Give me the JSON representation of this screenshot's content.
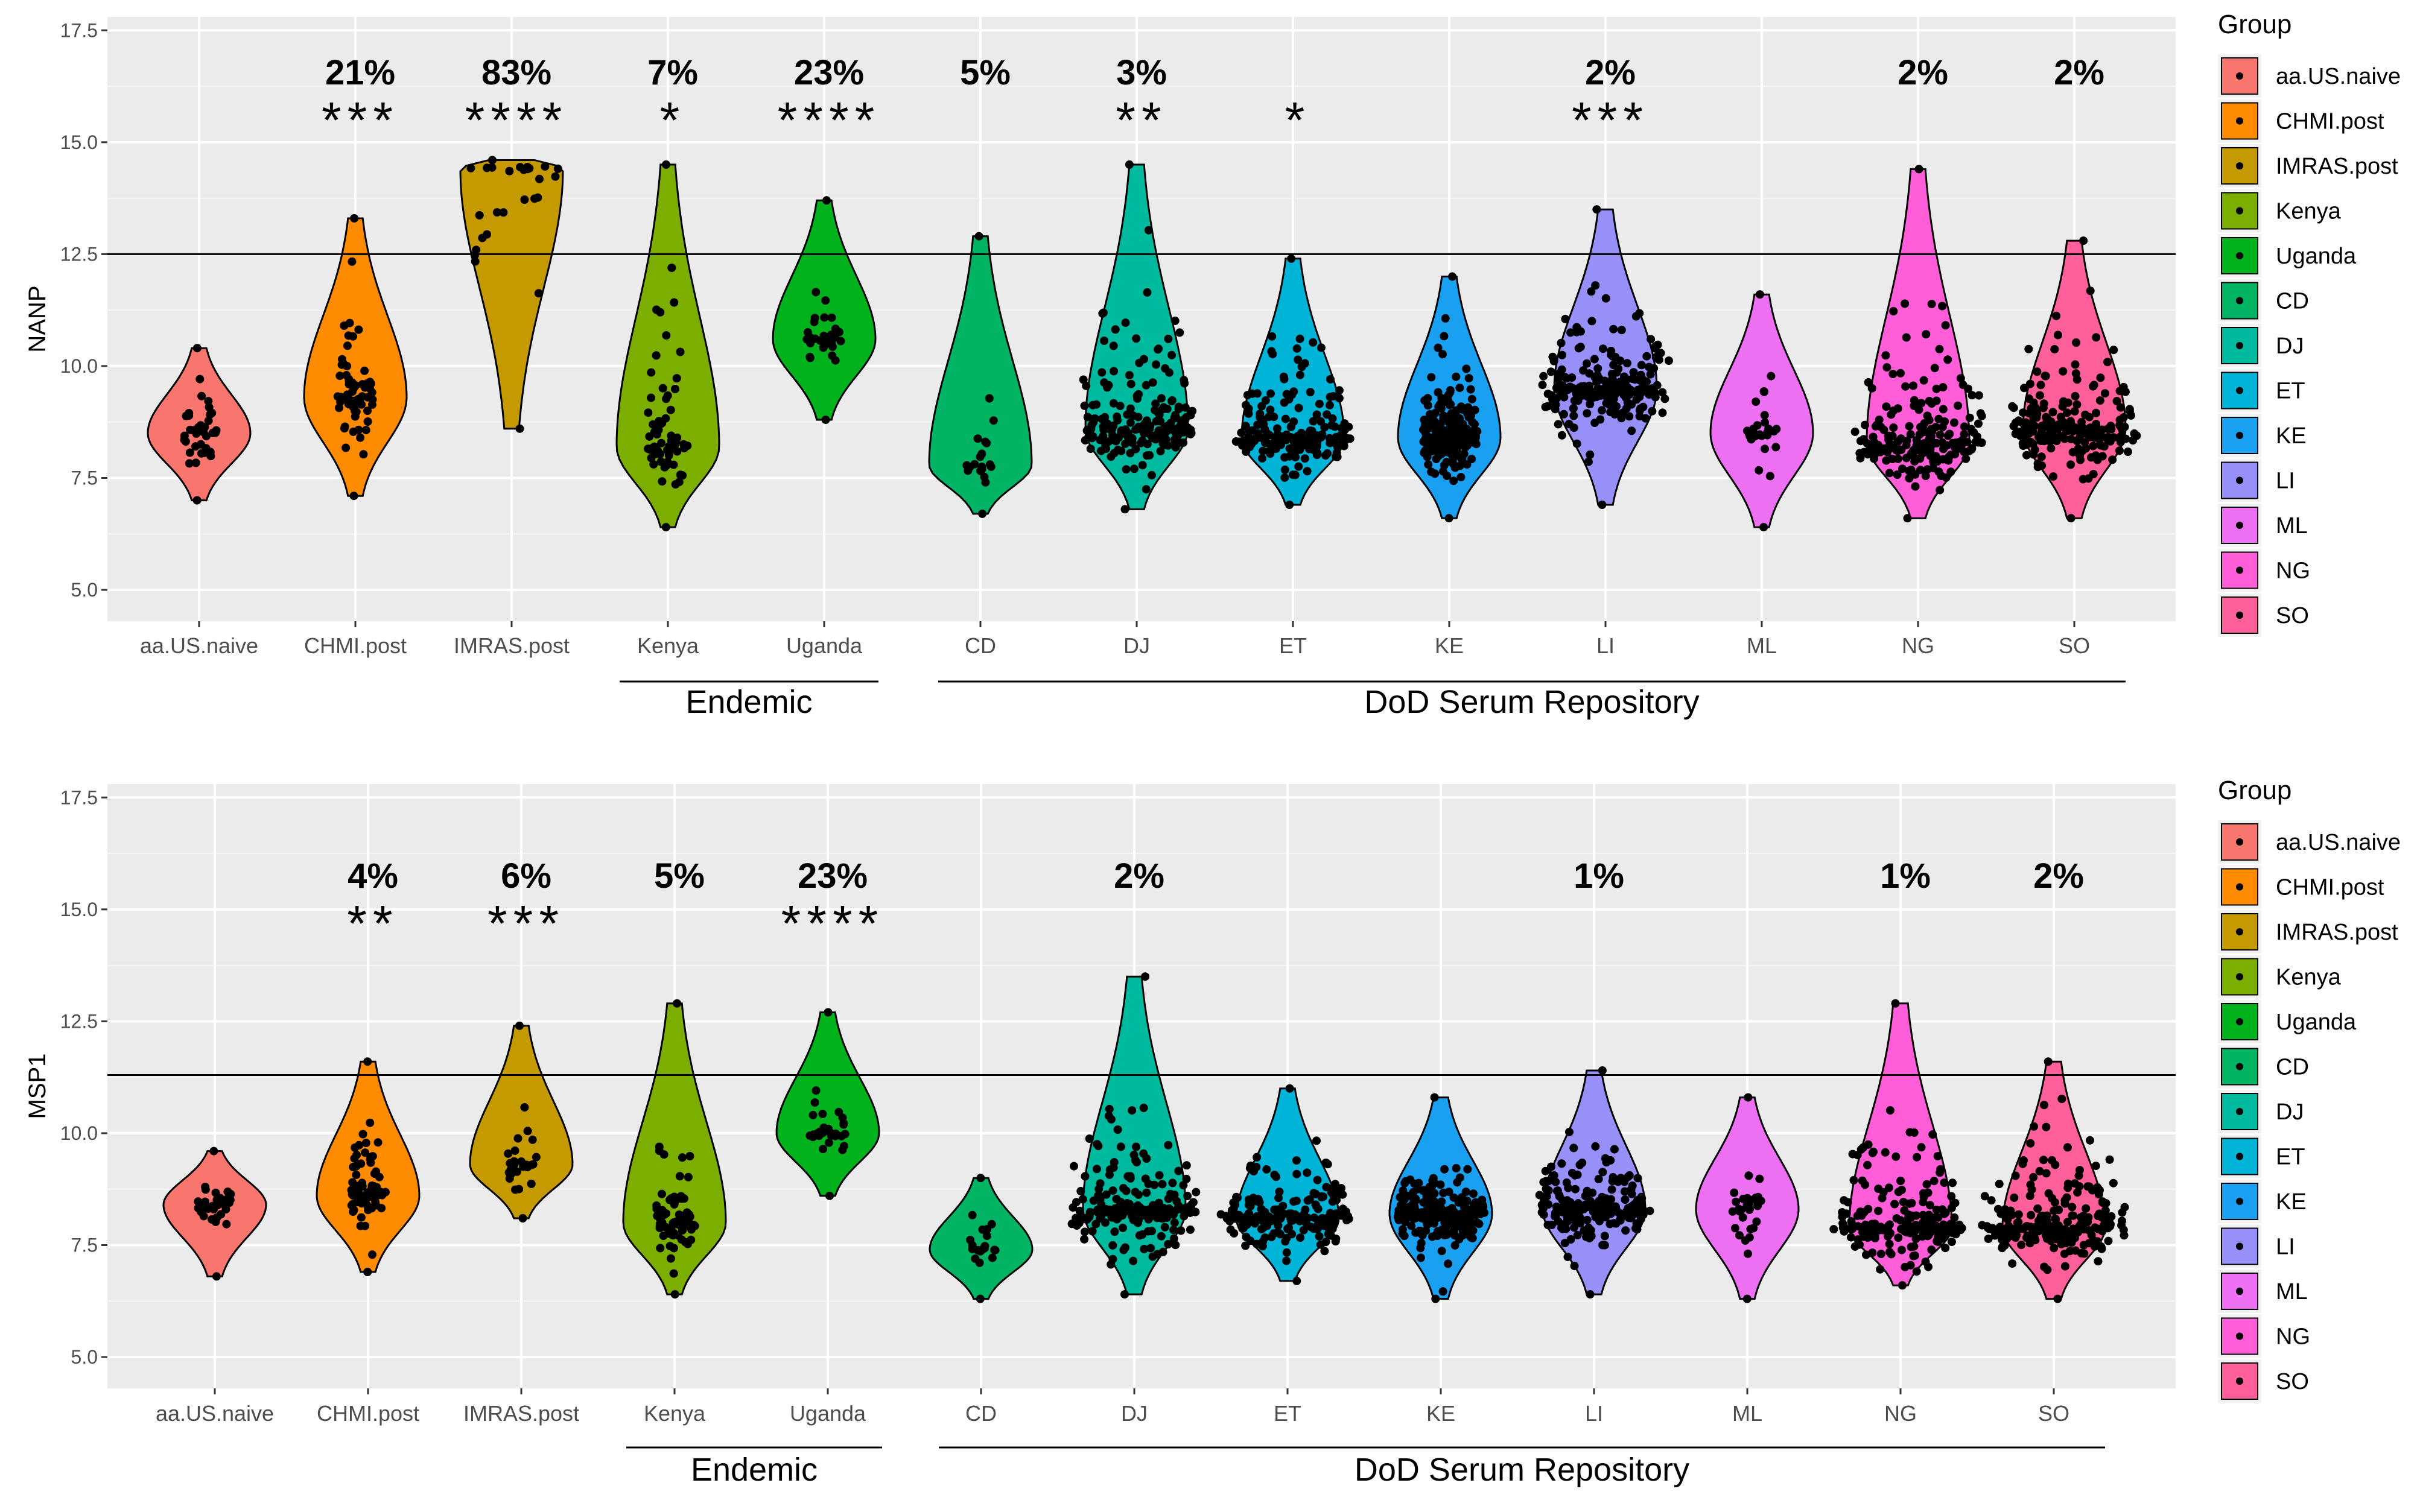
{
  "chart_data": [
    {
      "type": "violin",
      "ylabel": "NANP",
      "ylim": [
        4.3,
        17.8
      ],
      "yticks": [
        5.0,
        7.5,
        10.0,
        12.5,
        15.0,
        17.5
      ],
      "ytick_labels": [
        "5.0",
        "7.5",
        "10.0",
        "12.5",
        "15.0",
        "17.5"
      ],
      "threshold": 12.5,
      "categories": [
        "aa.US.naive",
        "CHMI.post",
        "IMRAS.post",
        "Kenya",
        "Uganda",
        "CD",
        "DJ",
        "ET",
        "KE",
        "LI",
        "ML",
        "NG",
        "SO"
      ],
      "percent_labels": [
        "",
        "21%",
        "83%",
        "7%",
        "23%",
        "5%",
        "3%",
        "",
        "",
        "2%",
        "",
        "2%",
        "2%"
      ],
      "significance": [
        "",
        "***",
        "****",
        "*",
        "****",
        "",
        "**",
        "*",
        "",
        "***",
        "",
        "",
        ""
      ],
      "groups": [
        {
          "name": "aa.US.naive",
          "min": 7.0,
          "max": 10.4,
          "median": 8.5,
          "n": 36,
          "spread": 0.35
        },
        {
          "name": "CHMI.post",
          "min": 7.1,
          "max": 13.3,
          "median": 9.3,
          "n": 70,
          "spread": 0.35
        },
        {
          "name": "IMRAS.post",
          "min": 8.6,
          "max": 14.6,
          "median": 14.4,
          "n": 30,
          "spread": 0.9
        },
        {
          "name": "Kenya",
          "min": 6.4,
          "max": 14.5,
          "median": 8.2,
          "n": 70,
          "spread": 0.4
        },
        {
          "name": "Uganda",
          "min": 8.8,
          "max": 13.7,
          "median": 10.6,
          "n": 30,
          "spread": 0.35
        },
        {
          "name": "CD",
          "min": 6.7,
          "max": 12.9,
          "median": 7.8,
          "n": 20,
          "spread": 0.3
        },
        {
          "name": "DJ",
          "min": 6.8,
          "max": 14.5,
          "median": 8.6,
          "n": 200,
          "spread": 1.0
        },
        {
          "name": "ET",
          "min": 6.9,
          "max": 12.4,
          "median": 8.4,
          "n": 190,
          "spread": 1.0
        },
        {
          "name": "KE",
          "min": 6.6,
          "max": 12.0,
          "median": 8.4,
          "n": 220,
          "spread": 0.55
        },
        {
          "name": "LI",
          "min": 6.9,
          "max": 13.5,
          "median": 9.5,
          "n": 210,
          "spread": 1.1
        },
        {
          "name": "ML",
          "min": 6.4,
          "max": 11.6,
          "median": 8.5,
          "n": 30,
          "spread": 0.3
        },
        {
          "name": "NG",
          "min": 6.6,
          "max": 14.4,
          "median": 8.3,
          "n": 200,
          "spread": 1.1
        },
        {
          "name": "SO",
          "min": 6.6,
          "max": 12.8,
          "median": 8.6,
          "n": 220,
          "spread": 1.1
        }
      ],
      "bracket_labels": [
        "Endemic",
        "DoD Serum Repository"
      ],
      "legend_title": "Group"
    },
    {
      "type": "violin",
      "ylabel": "MSP1",
      "ylim": [
        4.3,
        17.8
      ],
      "yticks": [
        5.0,
        7.5,
        10.0,
        12.5,
        15.0,
        17.5
      ],
      "ytick_labels": [
        "5.0",
        "7.5",
        "10.0",
        "12.5",
        "15.0",
        "17.5"
      ],
      "threshold": 11.3,
      "categories": [
        "aa.US.naive",
        "CHMI.post",
        "IMRAS.post",
        "Kenya",
        "Uganda",
        "CD",
        "DJ",
        "ET",
        "KE",
        "LI",
        "ML",
        "NG",
        "SO"
      ],
      "percent_labels": [
        "",
        "4%",
        "6%",
        "5%",
        "23%",
        "",
        "2%",
        "",
        "",
        "1%",
        "",
        "1%",
        "2%"
      ],
      "significance": [
        "",
        "**",
        "***",
        "",
        "****",
        "",
        "",
        "",
        "",
        "",
        "",
        "",
        ""
      ],
      "groups": [
        {
          "name": "aa.US.naive",
          "min": 6.8,
          "max": 9.6,
          "median": 8.4,
          "n": 36,
          "spread": 0.35
        },
        {
          "name": "CHMI.post",
          "min": 6.9,
          "max": 11.6,
          "median": 8.6,
          "n": 70,
          "spread": 0.35
        },
        {
          "name": "IMRAS.post",
          "min": 8.1,
          "max": 12.4,
          "median": 9.3,
          "n": 30,
          "spread": 0.3
        },
        {
          "name": "Kenya",
          "min": 6.4,
          "max": 12.9,
          "median": 8.0,
          "n": 70,
          "spread": 0.4
        },
        {
          "name": "Uganda",
          "min": 8.6,
          "max": 12.7,
          "median": 10.0,
          "n": 30,
          "spread": 0.35
        },
        {
          "name": "CD",
          "min": 6.3,
          "max": 9.0,
          "median": 7.4,
          "n": 20,
          "spread": 0.3
        },
        {
          "name": "DJ",
          "min": 6.4,
          "max": 13.5,
          "median": 8.3,
          "n": 200,
          "spread": 1.1
        },
        {
          "name": "ET",
          "min": 6.7,
          "max": 11.0,
          "median": 8.1,
          "n": 190,
          "spread": 1.1
        },
        {
          "name": "KE",
          "min": 6.3,
          "max": 10.8,
          "median": 8.2,
          "n": 220,
          "spread": 0.85
        },
        {
          "name": "LI",
          "min": 6.4,
          "max": 11.4,
          "median": 8.3,
          "n": 210,
          "spread": 1.0
        },
        {
          "name": "ML",
          "min": 6.3,
          "max": 10.8,
          "median": 8.3,
          "n": 30,
          "spread": 0.3
        },
        {
          "name": "NG",
          "min": 6.6,
          "max": 12.9,
          "median": 7.9,
          "n": 200,
          "spread": 1.1
        },
        {
          "name": "SO",
          "min": 6.3,
          "max": 11.6,
          "median": 7.9,
          "n": 220,
          "spread": 1.2
        }
      ],
      "bracket_labels": [
        "Endemic",
        "DoD Serum Repository"
      ],
      "legend_title": "Group"
    }
  ],
  "legend": {
    "title": "Group",
    "items": [
      {
        "label": "aa.US.naive",
        "color": "#F8766D"
      },
      {
        "label": "CHMI.post",
        "color": "#FF8C00"
      },
      {
        "label": "IMRAS.post",
        "color": "#C49A00"
      },
      {
        "label": "Kenya",
        "color": "#7CAE00"
      },
      {
        "label": "Uganda",
        "color": "#00B31C"
      },
      {
        "label": "CD",
        "color": "#00B464"
      },
      {
        "label": "DJ",
        "color": "#00BAA0"
      },
      {
        "label": "ET",
        "color": "#00B4D8"
      },
      {
        "label": "KE",
        "color": "#1AA0F0"
      },
      {
        "label": "LI",
        "color": "#9690F8"
      },
      {
        "label": "ML",
        "color": "#EE70F2"
      },
      {
        "label": "NG",
        "color": "#FF5ED8"
      },
      {
        "label": "SO",
        "color": "#FF5F9A"
      }
    ]
  },
  "style": {
    "panel_bg": "#EBEBEB",
    "grid_color": "#FFFFFF",
    "point_color": "#000000"
  }
}
